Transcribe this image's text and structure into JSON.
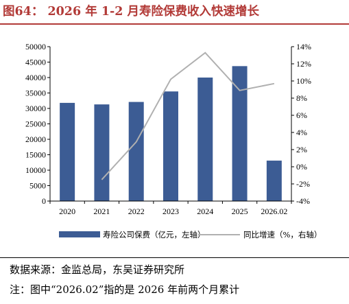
{
  "figure": {
    "title": "图64：  2026 年 1-2 月寿险保费收入快速增长",
    "source": "数据来源：金监总局，东吴证券研究所",
    "note": "注：图中“2026.02”指的是 2026 年前两个月累计"
  },
  "colors": {
    "title": "#b23a37",
    "bar": "#3c5c94",
    "line": "#b0b0b0"
  },
  "chart_data": {
    "type": "bar",
    "categories": [
      "2020",
      "2021",
      "2022",
      "2023",
      "2024",
      "2025",
      "2026.02"
    ],
    "series": [
      {
        "name": "寿险公司保费（亿元，左轴）",
        "type": "bar",
        "axis": "left",
        "values": [
          31800,
          31300,
          32100,
          35500,
          40000,
          43700,
          13100
        ]
      },
      {
        "name": "同比增速（%，右轴）",
        "type": "line",
        "axis": "right",
        "values": [
          null,
          -1.5,
          2.9,
          10.2,
          13.3,
          8.9,
          9.7
        ]
      }
    ],
    "ylim_left": [
      0,
      50000
    ],
    "yticks_left": [
      "0",
      "5000",
      "10000",
      "15000",
      "20000",
      "25000",
      "30000",
      "35000",
      "40000",
      "45000",
      "50000"
    ],
    "ylim_right": [
      -4,
      14
    ],
    "yticks_right": [
      "-4%",
      "-2%",
      "0%",
      "2%",
      "4%",
      "6%",
      "8%",
      "10%",
      "12%",
      "14%"
    ],
    "grid": false,
    "legend_position": "bottom"
  }
}
